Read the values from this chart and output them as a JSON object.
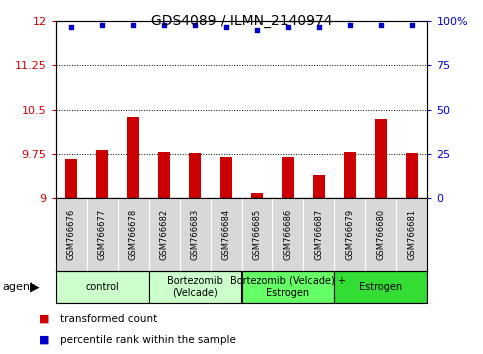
{
  "title": "GDS4089 / ILMN_2140974",
  "samples": [
    "GSM766676",
    "GSM766677",
    "GSM766678",
    "GSM766682",
    "GSM766683",
    "GSM766684",
    "GSM766685",
    "GSM766686",
    "GSM766687",
    "GSM766679",
    "GSM766680",
    "GSM766681"
  ],
  "bar_values": [
    9.67,
    9.82,
    10.38,
    9.78,
    9.77,
    9.7,
    9.09,
    9.7,
    9.4,
    9.78,
    10.35,
    9.76
  ],
  "dot_values_pct": [
    97,
    98,
    98,
    98,
    98,
    97,
    95,
    97,
    97,
    98,
    98,
    98
  ],
  "ylim_left": [
    9.0,
    12.0
  ],
  "yticks_left": [
    9.0,
    9.75,
    10.5,
    11.25,
    12.0
  ],
  "ytick_labels_left": [
    "9",
    "9.75",
    "10.5",
    "11.25",
    "12"
  ],
  "ylim_right": [
    0,
    100
  ],
  "yticks_right": [
    0,
    25,
    50,
    75,
    100
  ],
  "ytick_labels_right": [
    "0",
    "25",
    "50",
    "75",
    "100%"
  ],
  "hlines": [
    9.75,
    10.5,
    11.25
  ],
  "bar_color": "#cc0000",
  "dot_color": "#0000cc",
  "bar_bottom": 9.0,
  "groups": [
    {
      "label": "control",
      "start": 0,
      "end": 2,
      "color": "#ccffcc"
    },
    {
      "label": "Bortezomib\n(Velcade)",
      "start": 3,
      "end": 5,
      "color": "#ccffcc"
    },
    {
      "label": "Bortezomib (Velcade) +\nEstrogen",
      "start": 6,
      "end": 8,
      "color": "#66ff66"
    },
    {
      "label": "Estrogen",
      "start": 9,
      "end": 11,
      "color": "#33dd33"
    }
  ],
  "agent_label": "agent",
  "legend_bar_label": "transformed count",
  "legend_dot_label": "percentile rank within the sample",
  "bar_color_legend": "#cc0000",
  "dot_color_legend": "#0000cc",
  "left_tick_color": "#cc0000",
  "right_tick_color": "#0000cc",
  "xtick_bg": "#d8d8d8",
  "bar_width": 0.4,
  "figsize": [
    4.83,
    3.54
  ],
  "dpi": 100
}
